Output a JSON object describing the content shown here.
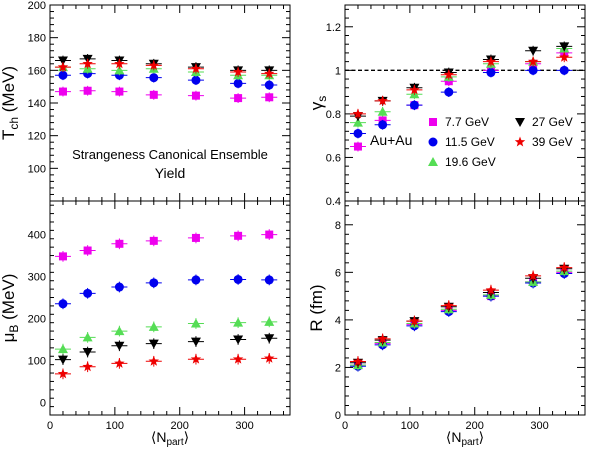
{
  "chart_data": [
    {
      "type": "scatter",
      "panel": "top-left",
      "ylabel": "T",
      "ylabel_sub": "ch",
      "ylabel_unit": " (MeV)",
      "xlabel": "",
      "xlim": [
        0,
        370
      ],
      "ylim": [
        80,
        200
      ],
      "yticks": [
        100,
        120,
        140,
        160,
        180,
        200
      ],
      "xticks": [
        0,
        100,
        200,
        300
      ],
      "annotations": [
        "Strangeness Canonical Ensemble",
        "Yield"
      ],
      "series": [
        {
          "name": "7.7 GeV",
          "x": [
            20,
            58,
            107,
            160,
            225,
            290,
            338
          ],
          "values": [
            147,
            147.5,
            147,
            145,
            144.5,
            143,
            143.5
          ]
        },
        {
          "name": "11.5 GeV",
          "x": [
            20,
            58,
            107,
            160,
            225,
            290,
            338
          ],
          "values": [
            157,
            158,
            157,
            155.5,
            154,
            152,
            151
          ]
        },
        {
          "name": "19.6 GeV",
          "x": [
            20,
            58,
            107,
            160,
            225,
            290,
            338
          ],
          "values": [
            162,
            161,
            160,
            161,
            159,
            157,
            157
          ]
        },
        {
          "name": "27 GeV",
          "x": [
            20,
            58,
            107,
            160,
            225,
            290,
            338
          ],
          "values": [
            166,
            167,
            166,
            164,
            162,
            160,
            160
          ]
        },
        {
          "name": "39 GeV",
          "x": [
            20,
            58,
            107,
            160,
            225,
            290,
            338
          ],
          "values": [
            162,
            164,
            164,
            163,
            161,
            159,
            158
          ]
        }
      ]
    },
    {
      "type": "scatter",
      "panel": "top-right",
      "ylabel": "γ",
      "ylabel_sub": "s",
      "ylabel_unit": "",
      "xlabel": "",
      "xlim": [
        0,
        370
      ],
      "ylim": [
        0.4,
        1.3
      ],
      "yticks": [
        0.4,
        0.6,
        0.8,
        1,
        1.2
      ],
      "xticks": [
        0,
        100,
        200,
        300
      ],
      "reference_line": 1,
      "annotations": [
        "Au+Au"
      ],
      "series": [
        {
          "name": "7.7 GeV",
          "x": [
            20,
            58,
            107,
            160,
            225,
            290,
            338
          ],
          "values": [
            0.65,
            0.77,
            0.84,
            0.95,
            1.0,
            1.03,
            1.08
          ]
        },
        {
          "name": "11.5 GeV",
          "x": [
            20,
            58,
            107,
            160,
            225,
            290,
            338
          ],
          "values": [
            0.71,
            0.75,
            0.84,
            0.9,
            0.99,
            1.0,
            1.0
          ]
        },
        {
          "name": "19.6 GeV",
          "x": [
            20,
            58,
            107,
            160,
            225,
            290,
            338
          ],
          "values": [
            0.76,
            0.81,
            0.89,
            0.97,
            1.03,
            1.04,
            1.1
          ]
        },
        {
          "name": "27 GeV",
          "x": [
            20,
            58,
            107,
            160,
            225,
            290,
            338
          ],
          "values": [
            0.79,
            0.86,
            0.92,
            0.99,
            1.05,
            1.09,
            1.11
          ]
        },
        {
          "name": "39 GeV",
          "x": [
            20,
            58,
            107,
            160,
            225,
            290,
            338
          ],
          "values": [
            0.8,
            0.86,
            0.91,
            0.98,
            1.04,
            1.04,
            1.06
          ]
        }
      ]
    },
    {
      "type": "scatter",
      "panel": "bottom-left",
      "ylabel": "μ",
      "ylabel_sub": "B",
      "ylabel_unit": " (MeV)",
      "xlabel": "⟨N",
      "xlabel_sub": "part",
      "xlabel_end": "⟩",
      "xlim": [
        0,
        370
      ],
      "ylim": [
        -30,
        480
      ],
      "yticks": [
        0,
        100,
        200,
        300,
        400
      ],
      "xticks": [
        0,
        100,
        200,
        300
      ],
      "series": [
        {
          "name": "7.7 GeV",
          "x": [
            20,
            58,
            107,
            160,
            225,
            290,
            338
          ],
          "values": [
            348,
            362,
            378,
            385,
            392,
            397,
            400
          ]
        },
        {
          "name": "11.5 GeV",
          "x": [
            20,
            58,
            107,
            160,
            225,
            290,
            338
          ],
          "values": [
            235,
            260,
            275,
            285,
            292,
            293,
            292
          ]
        },
        {
          "name": "19.6 GeV",
          "x": [
            20,
            58,
            107,
            160,
            225,
            290,
            338
          ],
          "values": [
            127,
            155,
            170,
            180,
            188,
            190,
            192
          ]
        },
        {
          "name": "27 GeV",
          "x": [
            20,
            58,
            107,
            160,
            225,
            290,
            338
          ],
          "values": [
            102,
            120,
            135,
            140,
            145,
            150,
            153
          ]
        },
        {
          "name": "39 GeV",
          "x": [
            20,
            58,
            107,
            160,
            225,
            290,
            338
          ],
          "values": [
            68,
            85,
            93,
            98,
            103,
            103,
            105
          ]
        }
      ]
    },
    {
      "type": "scatter",
      "panel": "bottom-right",
      "ylabel": "R (fm)",
      "ylabel_sub": "",
      "ylabel_unit": "",
      "xlabel": "⟨N",
      "xlabel_sub": "part",
      "xlabel_end": "⟩",
      "xlim": [
        0,
        370
      ],
      "ylim": [
        0,
        9
      ],
      "yticks": [
        0,
        2,
        4,
        6,
        8
      ],
      "xticks": [
        0,
        100,
        200,
        300
      ],
      "series": [
        {
          "name": "7.7 GeV",
          "x": [
            20,
            58,
            107,
            160,
            225,
            290,
            338
          ],
          "values": [
            2.1,
            3.0,
            3.8,
            4.4,
            5.0,
            5.6,
            6.0
          ]
        },
        {
          "name": "11.5 GeV",
          "x": [
            20,
            58,
            107,
            160,
            225,
            290,
            338
          ],
          "values": [
            2.05,
            2.95,
            3.75,
            4.35,
            5.0,
            5.55,
            5.95
          ]
        },
        {
          "name": "19.6 GeV",
          "x": [
            20,
            58,
            107,
            160,
            225,
            290,
            338
          ],
          "values": [
            2.1,
            3.05,
            3.85,
            4.45,
            5.05,
            5.6,
            6.05
          ]
        },
        {
          "name": "27 GeV",
          "x": [
            20,
            58,
            107,
            160,
            225,
            290,
            338
          ],
          "values": [
            2.2,
            3.15,
            3.95,
            4.55,
            5.15,
            5.75,
            6.15
          ]
        },
        {
          "name": "39 GeV",
          "x": [
            20,
            58,
            107,
            160,
            225,
            290,
            338
          ],
          "values": [
            2.25,
            3.2,
            3.95,
            4.6,
            5.25,
            5.85,
            6.2
          ]
        }
      ]
    }
  ],
  "legend": [
    {
      "name": "7.7 GeV",
      "marker": "square",
      "color": "#ee00ee"
    },
    {
      "name": "27 GeV",
      "marker": "triangle-down",
      "color": "#000000"
    },
    {
      "name": "11.5 GeV",
      "marker": "circle",
      "color": "#0000ee"
    },
    {
      "name": "39 GeV",
      "marker": "star",
      "color": "#ee0000"
    },
    {
      "name": "19.6 GeV",
      "marker": "triangle-up",
      "color": "#55dd55"
    }
  ],
  "series_style": {
    "7.7 GeV": {
      "marker": "square",
      "color": "#ee00ee"
    },
    "11.5 GeV": {
      "marker": "circle",
      "color": "#0000ee"
    },
    "19.6 GeV": {
      "marker": "triangle-up",
      "color": "#55dd55"
    },
    "27 GeV": {
      "marker": "triangle-down",
      "color": "#000000"
    },
    "39 GeV": {
      "marker": "star",
      "color": "#ee0000"
    }
  }
}
